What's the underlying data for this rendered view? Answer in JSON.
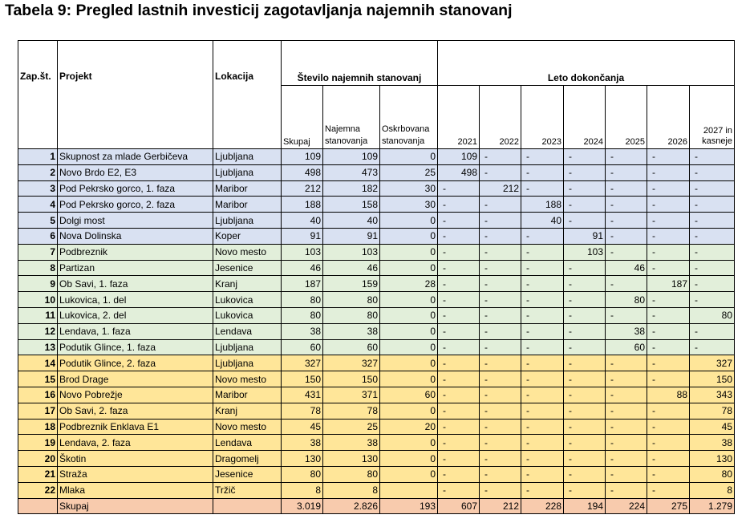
{
  "title": "Tabela 9: Pregled lastnih investicij zagotavljanja najemnih stanovanj",
  "headers": {
    "zap": "Zap.št.",
    "projekt": "Projekt",
    "lokacija": "Lokacija",
    "stevilo": "Število najemnih stanovanj",
    "leto": "Leto dokončanja",
    "skupaj": "Skupaj",
    "najemna": "Najemna stanovanja",
    "oskrbovana": "Oskrbovana stanovanja",
    "years": [
      "2021",
      "2022",
      "2023",
      "2024",
      "2025",
      "2026",
      "2027 in kasneje"
    ]
  },
  "rows": [
    {
      "no": "1",
      "projekt": "Skupnost za mlade Gerbičeva",
      "lokacija": "Ljubljana",
      "skupaj": "109",
      "najemna": "109",
      "oskrbovana": "0",
      "years": [
        "109",
        "-",
        "-",
        "-",
        "-",
        "-",
        "-"
      ]
    },
    {
      "no": "2",
      "projekt": "Novo Brdo E2, E3",
      "lokacija": "Ljubljana",
      "skupaj": "498",
      "najemna": "473",
      "oskrbovana": "25",
      "years": [
        "498",
        "-",
        "-",
        "-",
        "-",
        "-",
        "-"
      ]
    },
    {
      "no": "3",
      "projekt": "Pod Pekrsko gorco, 1. faza",
      "lokacija": "Maribor",
      "skupaj": "212",
      "najemna": "182",
      "oskrbovana": "30",
      "years": [
        "-",
        "212",
        "-",
        "-",
        "-",
        "-",
        "-"
      ]
    },
    {
      "no": "4",
      "projekt": "Pod Pekrsko gorco, 2. faza",
      "lokacija": "Maribor",
      "skupaj": "188",
      "najemna": "158",
      "oskrbovana": "30",
      "years": [
        "-",
        "-",
        "188",
        "-",
        "-",
        "-",
        "-"
      ]
    },
    {
      "no": "5",
      "projekt": "Dolgi most",
      "lokacija": "Ljubljana",
      "skupaj": "40",
      "najemna": "40",
      "oskrbovana": "0",
      "years": [
        "-",
        "-",
        "40",
        "-",
        "-",
        "-",
        "-"
      ]
    },
    {
      "no": "6",
      "projekt": "Nova Dolinska",
      "lokacija": "Koper",
      "skupaj": "91",
      "najemna": "91",
      "oskrbovana": "0",
      "years": [
        "-",
        "-",
        "-",
        "91",
        "-",
        "-",
        "-"
      ]
    },
    {
      "no": "7",
      "projekt": "Podbreznik",
      "lokacija": "Novo mesto",
      "skupaj": "103",
      "najemna": "103",
      "oskrbovana": "0",
      "years": [
        "-",
        "-",
        "-",
        "103",
        "-",
        "-",
        "-"
      ]
    },
    {
      "no": "8",
      "projekt": "Partizan",
      "lokacija": "Jesenice",
      "skupaj": "46",
      "najemna": "46",
      "oskrbovana": "0",
      "years": [
        "-",
        "-",
        "-",
        "-",
        "46",
        "-",
        "-"
      ]
    },
    {
      "no": "9",
      "projekt": "Ob Savi, 1. faza",
      "lokacija": "Kranj",
      "skupaj": "187",
      "najemna": "159",
      "oskrbovana": "28",
      "years": [
        "-",
        "-",
        "-",
        "-",
        "-",
        "187",
        "-"
      ]
    },
    {
      "no": "10",
      "projekt": "Lukovica, 1. del",
      "lokacija": "Lukovica",
      "skupaj": "80",
      "najemna": "80",
      "oskrbovana": "0",
      "years": [
        "-",
        "-",
        "-",
        "-",
        "80",
        "-",
        "-"
      ]
    },
    {
      "no": "11",
      "projekt": "Lukovica, 2. del",
      "lokacija": "Lukovica",
      "skupaj": "80",
      "najemna": "80",
      "oskrbovana": "0",
      "years": [
        "-",
        "-",
        "-",
        "-",
        "-",
        "-",
        "80"
      ]
    },
    {
      "no": "12",
      "projekt": "Lendava, 1. faza",
      "lokacija": "Lendava",
      "skupaj": "38",
      "najemna": "38",
      "oskrbovana": "0",
      "years": [
        "-",
        "-",
        "-",
        "-",
        "38",
        "-",
        "-"
      ]
    },
    {
      "no": "13",
      "projekt": "Podutik Glince, 1. faza",
      "lokacija": "Ljubljana",
      "skupaj": "60",
      "najemna": "60",
      "oskrbovana": "0",
      "years": [
        "-",
        "-",
        "-",
        "-",
        "60",
        "-",
        "-"
      ]
    },
    {
      "no": "14",
      "projekt": "Podutik Glince, 2. faza",
      "lokacija": "Ljubljana",
      "skupaj": "327",
      "najemna": "327",
      "oskrbovana": "0",
      "years": [
        "-",
        "-",
        "-",
        "-",
        "-",
        "-",
        "327"
      ]
    },
    {
      "no": "15",
      "projekt": "Brod Drage",
      "lokacija": "Novo mesto",
      "skupaj": "150",
      "najemna": "150",
      "oskrbovana": "0",
      "years": [
        "-",
        "-",
        "-",
        "-",
        "-",
        "-",
        "150"
      ]
    },
    {
      "no": "16",
      "projekt": "Novo Pobrežje",
      "lokacija": "Maribor",
      "skupaj": "431",
      "najemna": "371",
      "oskrbovana": "60",
      "years": [
        "-",
        "-",
        "-",
        "-",
        "-",
        "88",
        "343"
      ]
    },
    {
      "no": "17",
      "projekt": "Ob Savi, 2. faza",
      "lokacija": "Kranj",
      "skupaj": "78",
      "najemna": "78",
      "oskrbovana": "0",
      "years": [
        "-",
        "-",
        "-",
        "-",
        "-",
        "-",
        "78"
      ]
    },
    {
      "no": "18",
      "projekt": "Podbreznik Enklava E1",
      "lokacija": "Novo mesto",
      "skupaj": "45",
      "najemna": "25",
      "oskrbovana": "20",
      "years": [
        "-",
        "-",
        "-",
        "-",
        "-",
        "-",
        "45"
      ]
    },
    {
      "no": "19",
      "projekt": "Lendava, 2. faza",
      "lokacija": "Lendava",
      "skupaj": "38",
      "najemna": "38",
      "oskrbovana": "0",
      "years": [
        "-",
        "-",
        "-",
        "-",
        "-",
        "-",
        "38"
      ]
    },
    {
      "no": "20",
      "projekt": "Škotin",
      "lokacija": "Dragomelj",
      "skupaj": "130",
      "najemna": "130",
      "oskrbovana": "0",
      "years": [
        "-",
        "-",
        "-",
        "-",
        "-",
        "-",
        "130"
      ]
    },
    {
      "no": "21",
      "projekt": "Straža",
      "lokacija": "Jesenice",
      "skupaj": "80",
      "najemna": "80",
      "oskrbovana": "0",
      "years": [
        "-",
        "-",
        "-",
        "-",
        "-",
        "-",
        "80"
      ]
    },
    {
      "no": "22",
      "projekt": "Mlaka",
      "lokacija": "Tržič",
      "skupaj": "8",
      "najemna": "8",
      "oskrbovana": "",
      "years": [
        "-",
        "-",
        "-",
        "-",
        "-",
        "-",
        "8"
      ]
    }
  ],
  "total": {
    "label": "Skupaj",
    "skupaj": "3.019",
    "najemna": "2.826",
    "oskrbovana": "193",
    "years": [
      "607",
      "212",
      "228",
      "194",
      "224",
      "275",
      "1.279"
    ]
  },
  "colors": {
    "blue": "#d9e1f2",
    "green": "#e2efda",
    "yellow": "#ffe699",
    "total": "#f8cbad"
  }
}
